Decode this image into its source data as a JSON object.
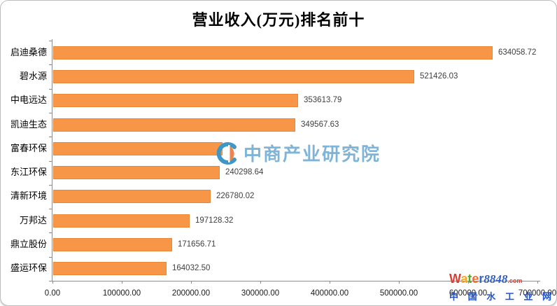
{
  "title": "营业收入(万元)排名前十",
  "chart_data": {
    "type": "bar",
    "orientation": "horizontal",
    "title": "营业收入(万元)排名前十",
    "categories": [
      "启迪桑德",
      "碧水源",
      "中电远达",
      "凯迪生态",
      "富春环保",
      "东江环保",
      "清新环境",
      "万邦达",
      "鼎立股份",
      "盛运环保"
    ],
    "values": [
      634058.72,
      521426.03,
      353613.79,
      349567.63,
      244000,
      240298.64,
      226780.02,
      197128.32,
      171656.71,
      164032.5
    ],
    "value_labels": [
      "634058.72",
      "521426.03",
      "353613.79",
      "349567.63",
      "",
      "240298.64",
      "226780.02",
      "197128.32",
      "171656.71",
      "164032.50"
    ],
    "x_ticks": [
      "0.00",
      "100000.00",
      "200000.00",
      "300000.00",
      "400000.00",
      "500000.00",
      "600000.00",
      "700000.00"
    ],
    "xlim": [
      0,
      700000
    ],
    "xlabel": "",
    "ylabel": "",
    "grid": false,
    "legend": false,
    "bar_color": "#F79646",
    "bar_border_color": "#E6873B"
  },
  "watermark": {
    "text": "中商产业研究院",
    "text_color": "#7DB4D7",
    "logo_blue": "#3F97C6",
    "logo_orange": "#F0834B"
  },
  "footer_logo": {
    "letters": [
      {
        "ch": "W",
        "color": "#E23A2E"
      },
      {
        "ch": "a",
        "color": "#F6A623"
      },
      {
        "ch": "t",
        "color": "#5BA829"
      },
      {
        "ch": "e",
        "color": "#F07032"
      },
      {
        "ch": "r",
        "color": "#3A66C9"
      }
    ],
    "number": "8848",
    "number_color": "#2F5FC4",
    "tld": ".com",
    "tld_color": "#E23A2E",
    "subtitle": "中 国 水 工 业 网",
    "subtitle_color": "#2153C6"
  }
}
